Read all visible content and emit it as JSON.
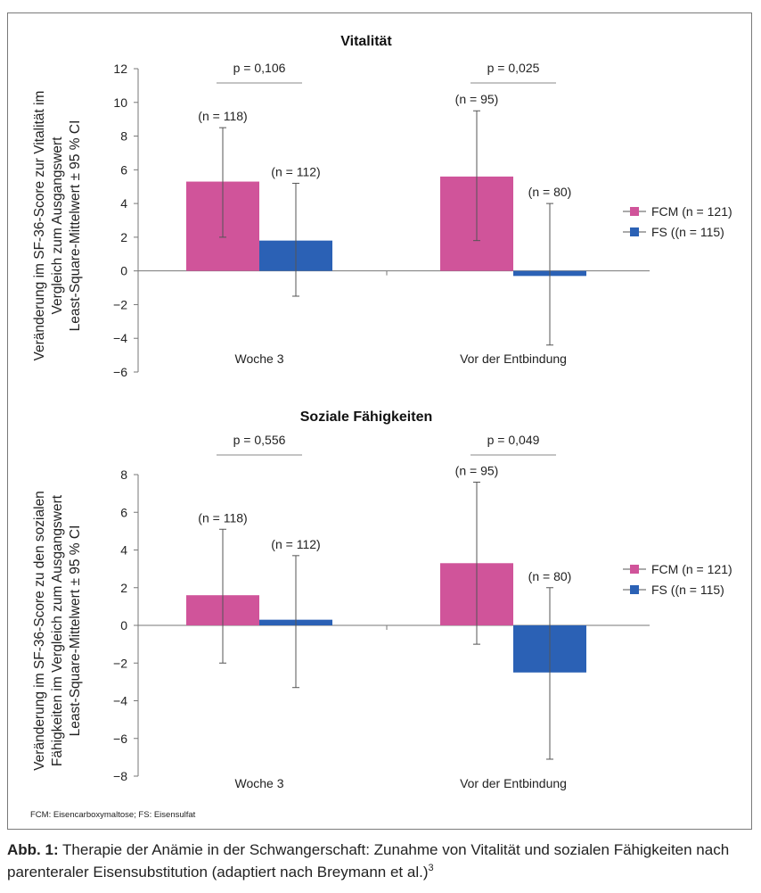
{
  "chart_data": [
    {
      "type": "bar",
      "title": "Vitalität",
      "ylabel": "Veränderung im SF-36-Score zur Vitalität im Vergleich zum Ausgangswert Least-Square-Mittelwert ± 95 % CI",
      "ylabel_lines": [
        "Veränderung im SF-36-Score zur Vitalität im",
        "Vergleich zum Ausgangswert",
        "Least-Square-Mittelwert ± 95 % CI"
      ],
      "ylim": [
        -6,
        12
      ],
      "yticks": [
        "12",
        "10",
        "8",
        "6",
        "4",
        "2",
        "0",
        "−2",
        "−4",
        "−6"
      ],
      "ytick_values": [
        12,
        10,
        8,
        6,
        4,
        2,
        0,
        -2,
        -4,
        -6
      ],
      "categories": [
        "Woche 3",
        "Vor der Entbindung"
      ],
      "p_values": [
        "p = 0,106",
        "p = 0,025"
      ],
      "series": [
        {
          "name": "FCM (n = 121)",
          "color": "#d0549a",
          "values": [
            5.3,
            5.6
          ],
          "ci_low": [
            2.0,
            1.8
          ],
          "ci_high": [
            8.5,
            9.5
          ],
          "n_labels": [
            "(n = 118)",
            "(n = 95)"
          ]
        },
        {
          "name": "FS ((n = 115)",
          "color": "#2b61b5",
          "values": [
            1.8,
            -0.3
          ],
          "ci_low": [
            -1.5,
            -4.4
          ],
          "ci_high": [
            5.2,
            4.0
          ],
          "n_labels": [
            "(n = 112)",
            "(n = 80)"
          ]
        }
      ],
      "legend_position": "right"
    },
    {
      "type": "bar",
      "title": "Soziale Fähigkeiten",
      "ylabel": "Veränderung im SF-36-Score zu den sozialen Fähigkeiten im Vergleich zum Ausgangswert Least-Square-Mittelwert ± 95 % CI",
      "ylabel_lines": [
        "Veränderung im SF-36-Score zu den sozialen",
        "Fähigkeiten im Vergleich zum Ausgangswert",
        "Least-Square-Mittelwert ± 95 % CI"
      ],
      "ylim": [
        -8,
        8
      ],
      "yticks": [
        "8",
        "6",
        "4",
        "2",
        "0",
        "−2",
        "−4",
        "−6",
        "−8"
      ],
      "ytick_values": [
        8,
        6,
        4,
        2,
        0,
        -2,
        -4,
        -6,
        -8
      ],
      "categories": [
        "Woche 3",
        "Vor der Entbindung"
      ],
      "p_values": [
        "p = 0,556",
        "p = 0,049"
      ],
      "series": [
        {
          "name": "FCM (n = 121)",
          "color": "#d0549a",
          "values": [
            1.6,
            3.3
          ],
          "ci_low": [
            -2.0,
            -1.0
          ],
          "ci_high": [
            5.1,
            7.6
          ],
          "n_labels": [
            "(n = 118)",
            "(n = 95)"
          ]
        },
        {
          "name": "FS ((n = 115)",
          "color": "#2b61b5",
          "values": [
            0.3,
            -2.5
          ],
          "ci_low": [
            -3.3,
            -7.1
          ],
          "ci_high": [
            3.7,
            2.0
          ],
          "n_labels": [
            "(n = 112)",
            "(n = 80)"
          ]
        }
      ],
      "legend_position": "right"
    }
  ],
  "footnote": "FCM: Eisencarboxymaltose; FS: Eisensulfat",
  "caption": {
    "label": "Abb. 1:",
    "text": "Therapie der Anämie in der Schwangerschaft: Zunahme von Vitalität und sozialen Fähigkeiten nach parenteraler Eisensubstitution (adaptiert nach Breymann et al.)",
    "ref": "3"
  }
}
